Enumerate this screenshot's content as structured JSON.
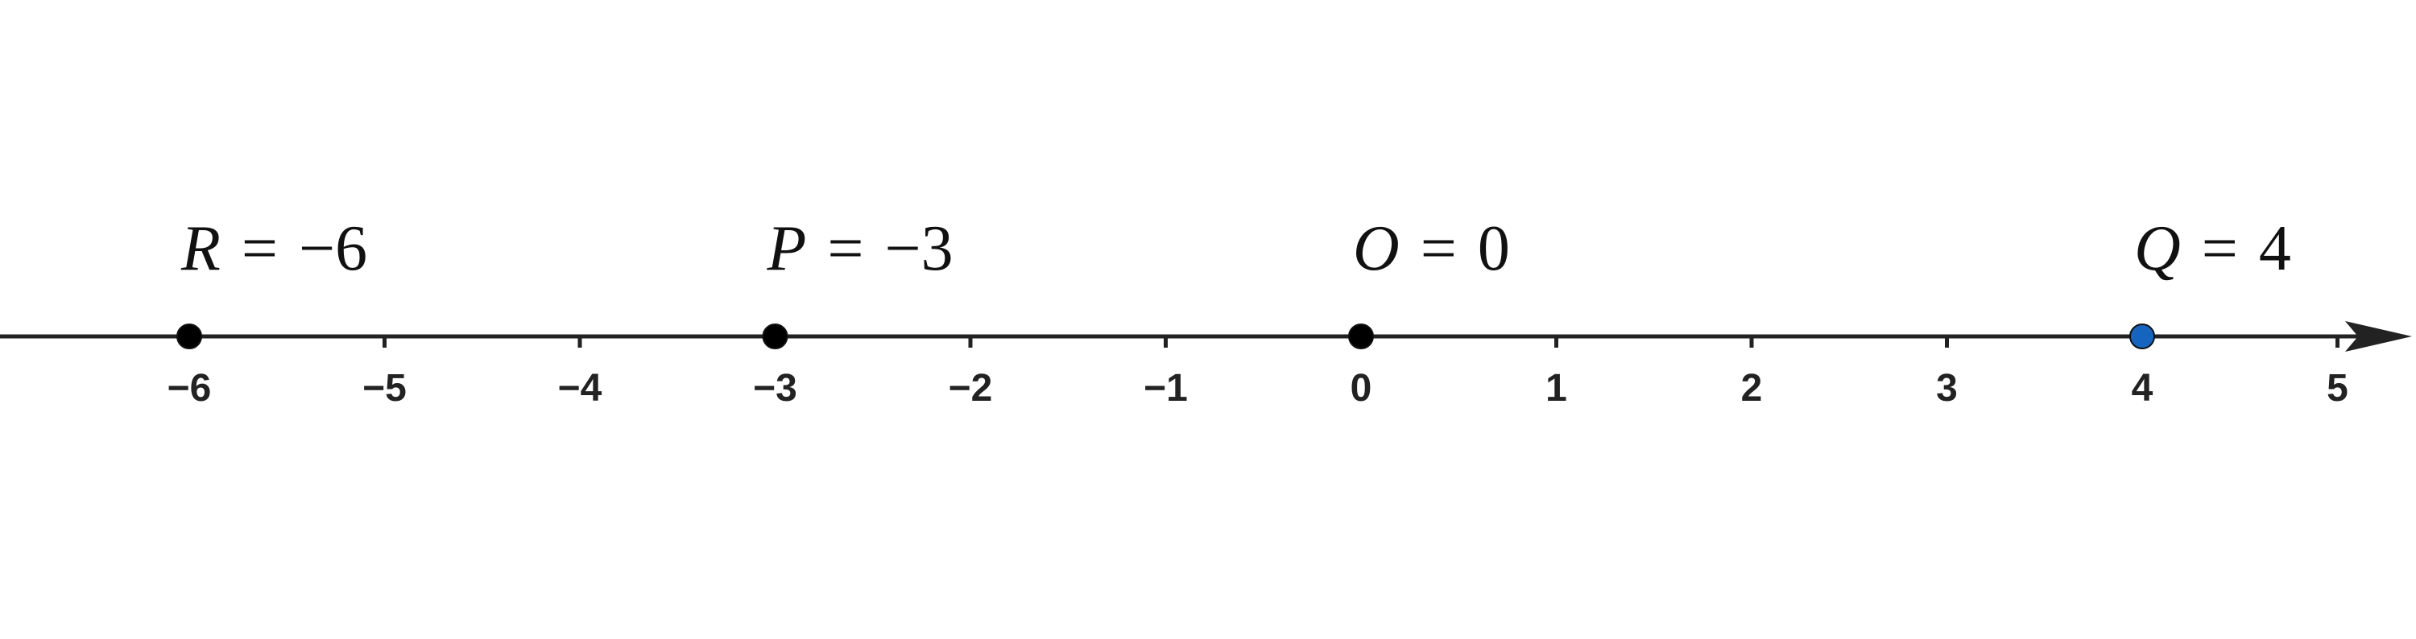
{
  "number_line": {
    "ticks": [
      {
        "value": -6,
        "label": "−6"
      },
      {
        "value": -5,
        "label": "−5"
      },
      {
        "value": -4,
        "label": "−4"
      },
      {
        "value": -3,
        "label": "−3"
      },
      {
        "value": -2,
        "label": "−2"
      },
      {
        "value": -1,
        "label": "−1"
      },
      {
        "value": 0,
        "label": "0"
      },
      {
        "value": 1,
        "label": "1"
      },
      {
        "value": 2,
        "label": "2"
      },
      {
        "value": 3,
        "label": "3"
      },
      {
        "value": 4,
        "label": "4"
      },
      {
        "value": 5,
        "label": "5"
      }
    ],
    "points": [
      {
        "name": "R",
        "value": -6,
        "label": "−6",
        "color": "#000000"
      },
      {
        "name": "P",
        "value": -3,
        "label": "−3",
        "color": "#000000"
      },
      {
        "name": "O",
        "value": 0,
        "label": "0",
        "color": "#000000"
      },
      {
        "name": "Q",
        "value": 4,
        "label": "4",
        "color": "#1565c0"
      }
    ],
    "axis_color": "#222222"
  }
}
